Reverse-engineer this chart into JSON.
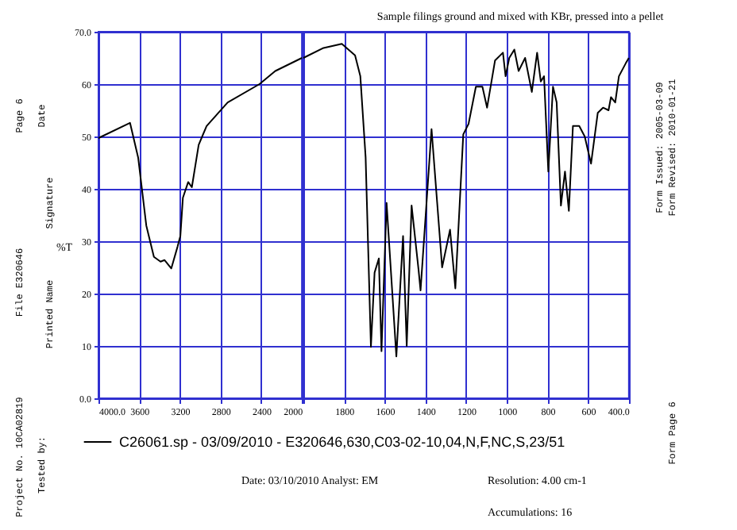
{
  "chart_data": [
    {
      "type": "line",
      "ylabel": "%T",
      "x": [
        4000,
        3690,
        3610,
        3530,
        3505,
        3455,
        3390,
        3350,
        3284,
        3222,
        3195,
        3170,
        3118,
        3082,
        3015,
        2937,
        2730,
        2417,
        2262,
        2000
      ],
      "series": [
        {
          "name": "C26061.sp - 03/09/2010 - E320646,630,C03-02-10,04,N,F,NC,S,23/51",
          "color": "#000000",
          "values": [
            49.7,
            52.6,
            46,
            33,
            31,
            27,
            26.1,
            26.4,
            24.8,
            29,
            31,
            38.3,
            41.3,
            40.3,
            48.4,
            52,
            56.5,
            60,
            62.5,
            65
          ]
        }
      ],
      "xlim": [
        4000,
        2000
      ],
      "xticks": [
        {
          "value": 4000,
          "label": "4000.0"
        },
        3600,
        3200,
        2800,
        2400,
        2000
      ],
      "ylim": [
        0,
        70
      ],
      "yticks": [
        {
          "value": 0,
          "label": "0.0"
        },
        10,
        20,
        30,
        40,
        50,
        60,
        {
          "value": 70,
          "label": "70.0"
        }
      ],
      "grid": true,
      "legend": "bottom",
      "marker": "none",
      "line_style": "solid",
      "annotations": [
        "Date: 03/10/2010   Analyst: EM",
        "Resolution: 4.00 cm-1",
        "Accumulations: 16",
        "Page 6",
        "Date",
        "File E320646",
        "Signature",
        "Printed Name",
        "Project No. 10CA02819",
        "Tested by:",
        "Form Issued: 2005-03-09",
        "Form Revised: 2010-01-21",
        "Form Page 6"
      ]
    },
    {
      "type": "line",
      "title": "Sample filings ground and mixed with KBr, pressed into a pellet",
      "x": [
        2000,
        1901,
        1811,
        1746,
        1720,
        1694,
        1668,
        1650,
        1629,
        1616,
        1591,
        1543,
        1510,
        1492,
        1468,
        1434,
        1424,
        1370,
        1318,
        1279,
        1253,
        1214,
        1188,
        1152,
        1120,
        1097,
        1058,
        1019,
        1006,
        988,
        963,
        942,
        910,
        877,
        851,
        833,
        817,
        796,
        773,
        755,
        734,
        714,
        695,
        675,
        644,
        617,
        586,
        553,
        527,
        500,
        488,
        467,
        449,
        415,
        400
      ],
      "series": [
        {
          "color": "#000000",
          "values": [
            65,
            66.9,
            67.7,
            65.5,
            61.5,
            46,
            9.8,
            24,
            26.7,
            9,
            37.3,
            8,
            31,
            10,
            36.8,
            24.6,
            20.6,
            51.4,
            25,
            32.2,
            21,
            50.4,
            52.4,
            59.5,
            59.5,
            55.5,
            64.5,
            66,
            61.5,
            65,
            66.6,
            62.5,
            65,
            58.5,
            66,
            60.5,
            61.5,
            43.3,
            59.5,
            56.5,
            36.8,
            43.3,
            35.8,
            52,
            52,
            50,
            44.8,
            54.5,
            55.5,
            55,
            57.5,
            56.5,
            61.5,
            64,
            65
          ]
        }
      ],
      "xlim": [
        2000,
        400
      ],
      "xticks": [
        {
          "value": 2000,
          "label": null
        },
        1800,
        1600,
        1400,
        1200,
        1000,
        800,
        600,
        {
          "value": 400,
          "label": "400.0"
        }
      ],
      "ylim": [
        0,
        70
      ],
      "yticks": [
        {
          "value": 0,
          "label": null
        },
        {
          "value": 10,
          "label": null
        },
        {
          "value": 20,
          "label": null
        },
        {
          "value": 30,
          "label": null
        },
        {
          "value": 40,
          "label": null
        },
        {
          "value": 50,
          "label": null
        },
        {
          "value": 60,
          "label": null
        },
        {
          "value": 70,
          "label": null
        }
      ],
      "grid": true,
      "tick_labels": "x",
      "marker": "none",
      "line_style": "solid"
    }
  ]
}
